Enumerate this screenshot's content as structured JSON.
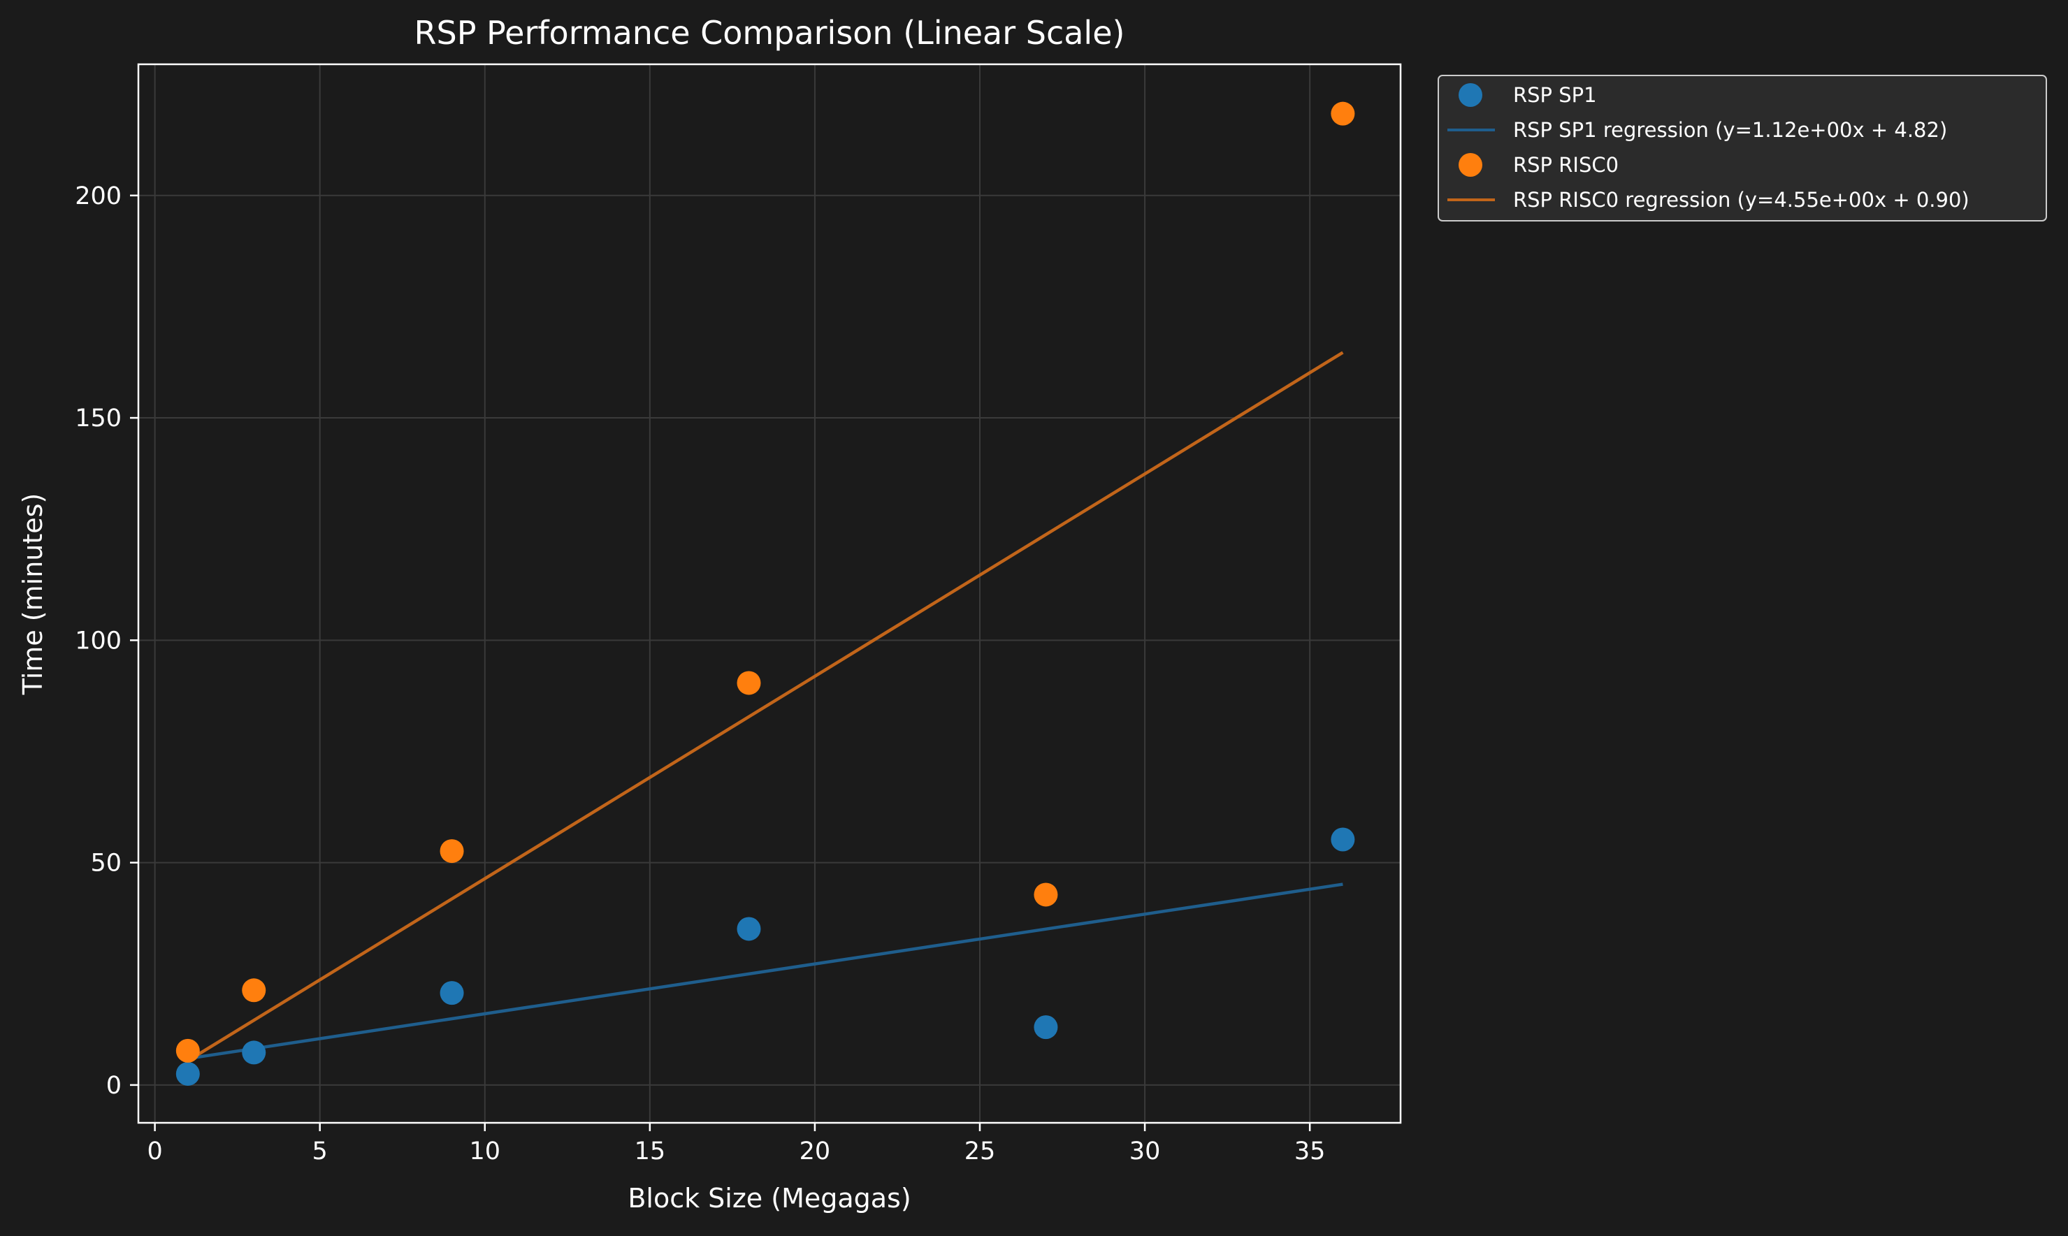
{
  "chart_data": {
    "type": "scatter",
    "title": "RSP Performance Comparison (Linear Scale)",
    "xlabel": "Block Size (Megagas)",
    "ylabel": "Time (minutes)",
    "xlim": [
      -0.5,
      37.75
    ],
    "ylim": [
      -8.5,
      229.5
    ],
    "xticks": [
      0,
      5,
      10,
      15,
      20,
      25,
      30,
      35
    ],
    "yticks": [
      0,
      50,
      100,
      150,
      200
    ],
    "grid": true,
    "legend_position": "outside-top-right",
    "series": [
      {
        "name": "RSP SP1",
        "kind": "scatter",
        "color": "#1f77b4",
        "x": [
          1,
          3,
          9,
          18,
          27,
          36
        ],
        "y": [
          2.5,
          7.3,
          20.7,
          35.1,
          13.0,
          55.2
        ]
      },
      {
        "name": "RSP SP1 regression (y=1.12e+00x + 4.82)",
        "kind": "line",
        "color": "#1f5e8d",
        "x": [
          1,
          36
        ],
        "y": [
          5.94,
          45.14
        ]
      },
      {
        "name": "RSP RISC0",
        "kind": "scatter",
        "color": "#ff7f0e",
        "x": [
          1,
          3,
          9,
          18,
          27,
          36
        ],
        "y": [
          7.7,
          21.3,
          52.6,
          90.4,
          42.8,
          218.4
        ]
      },
      {
        "name": "RSP RISC0 regression (y=4.55e+00x + 0.90)",
        "kind": "line",
        "color": "#c2651a",
        "x": [
          1,
          36
        ],
        "y": [
          5.45,
          164.7
        ]
      }
    ]
  }
}
